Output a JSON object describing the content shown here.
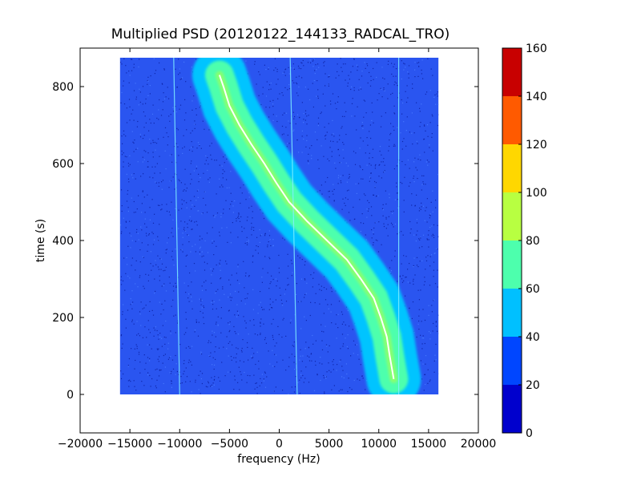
{
  "chart_data": {
    "type": "heatmap",
    "title": "Multiplied PSD (20120122_144133_RADCAL_TRO)",
    "xlabel": "frequency (Hz)",
    "ylabel": "time (s)",
    "xlim": [
      -20000,
      20000
    ],
    "ylim": [
      -100,
      900
    ],
    "x_ticks": [
      -20000,
      -15000,
      -10000,
      -5000,
      0,
      5000,
      10000,
      15000,
      20000
    ],
    "x_tick_labels": [
      "−20000",
      "−15000",
      "−10000",
      "−5000",
      "0",
      "5000",
      "10000",
      "15000",
      "20000"
    ],
    "y_ticks": [
      0,
      200,
      400,
      600,
      800
    ],
    "y_tick_labels": [
      "0",
      "200",
      "400",
      "600",
      "800"
    ],
    "data_extent": {
      "x": [
        -16000,
        16000
      ],
      "y": [
        0,
        875
      ]
    },
    "grid": false,
    "colorbar": {
      "range": [
        0,
        160
      ],
      "ticks": [
        "0",
        "20",
        "40",
        "60",
        "80",
        "100",
        "120",
        "140",
        "160"
      ],
      "levels": [
        {
          "from": 0,
          "to": 20,
          "color": "#0000cd"
        },
        {
          "from": 20,
          "to": 40,
          "color": "#0046ff"
        },
        {
          "from": 40,
          "to": 60,
          "color": "#00c0ff"
        },
        {
          "from": 60,
          "to": 80,
          "color": "#4dffad"
        },
        {
          "from": 80,
          "to": 100,
          "color": "#b8ff41"
        },
        {
          "from": 100,
          "to": 120,
          "color": "#ffd700"
        },
        {
          "from": 120,
          "to": 140,
          "color": "#ff5a00"
        },
        {
          "from": 140,
          "to": 160,
          "color": "#c80000"
        }
      ]
    },
    "colors": {
      "background_level": "#2a55f0",
      "dark_speckle": "#0a1ea0",
      "band_outer": "#00c4ff",
      "band_mid": "#4dffad",
      "band_inner": "#b8ff41",
      "trace": "#ffffff"
    },
    "doppler_trace": {
      "points": [
        {
          "t": 830,
          "f": -6000
        },
        {
          "t": 800,
          "f": -5600
        },
        {
          "t": 750,
          "f": -5000
        },
        {
          "t": 700,
          "f": -4000
        },
        {
          "t": 650,
          "f": -2800
        },
        {
          "t": 600,
          "f": -1500
        },
        {
          "t": 550,
          "f": -300
        },
        {
          "t": 500,
          "f": 1000
        },
        {
          "t": 450,
          "f": 2800
        },
        {
          "t": 400,
          "f": 4800
        },
        {
          "t": 350,
          "f": 6800
        },
        {
          "t": 300,
          "f": 8200
        },
        {
          "t": 250,
          "f": 9500
        },
        {
          "t": 200,
          "f": 10200
        },
        {
          "t": 150,
          "f": 10800
        },
        {
          "t": 100,
          "f": 11100
        },
        {
          "t": 40,
          "f": 11500
        }
      ]
    },
    "vertical_lines": [
      {
        "f_top": -10600,
        "f_bottom": -10000
      },
      {
        "f_top": 1100,
        "f_bottom": 1800
      },
      {
        "f_top": 12000,
        "f_bottom": 12000
      }
    ]
  }
}
